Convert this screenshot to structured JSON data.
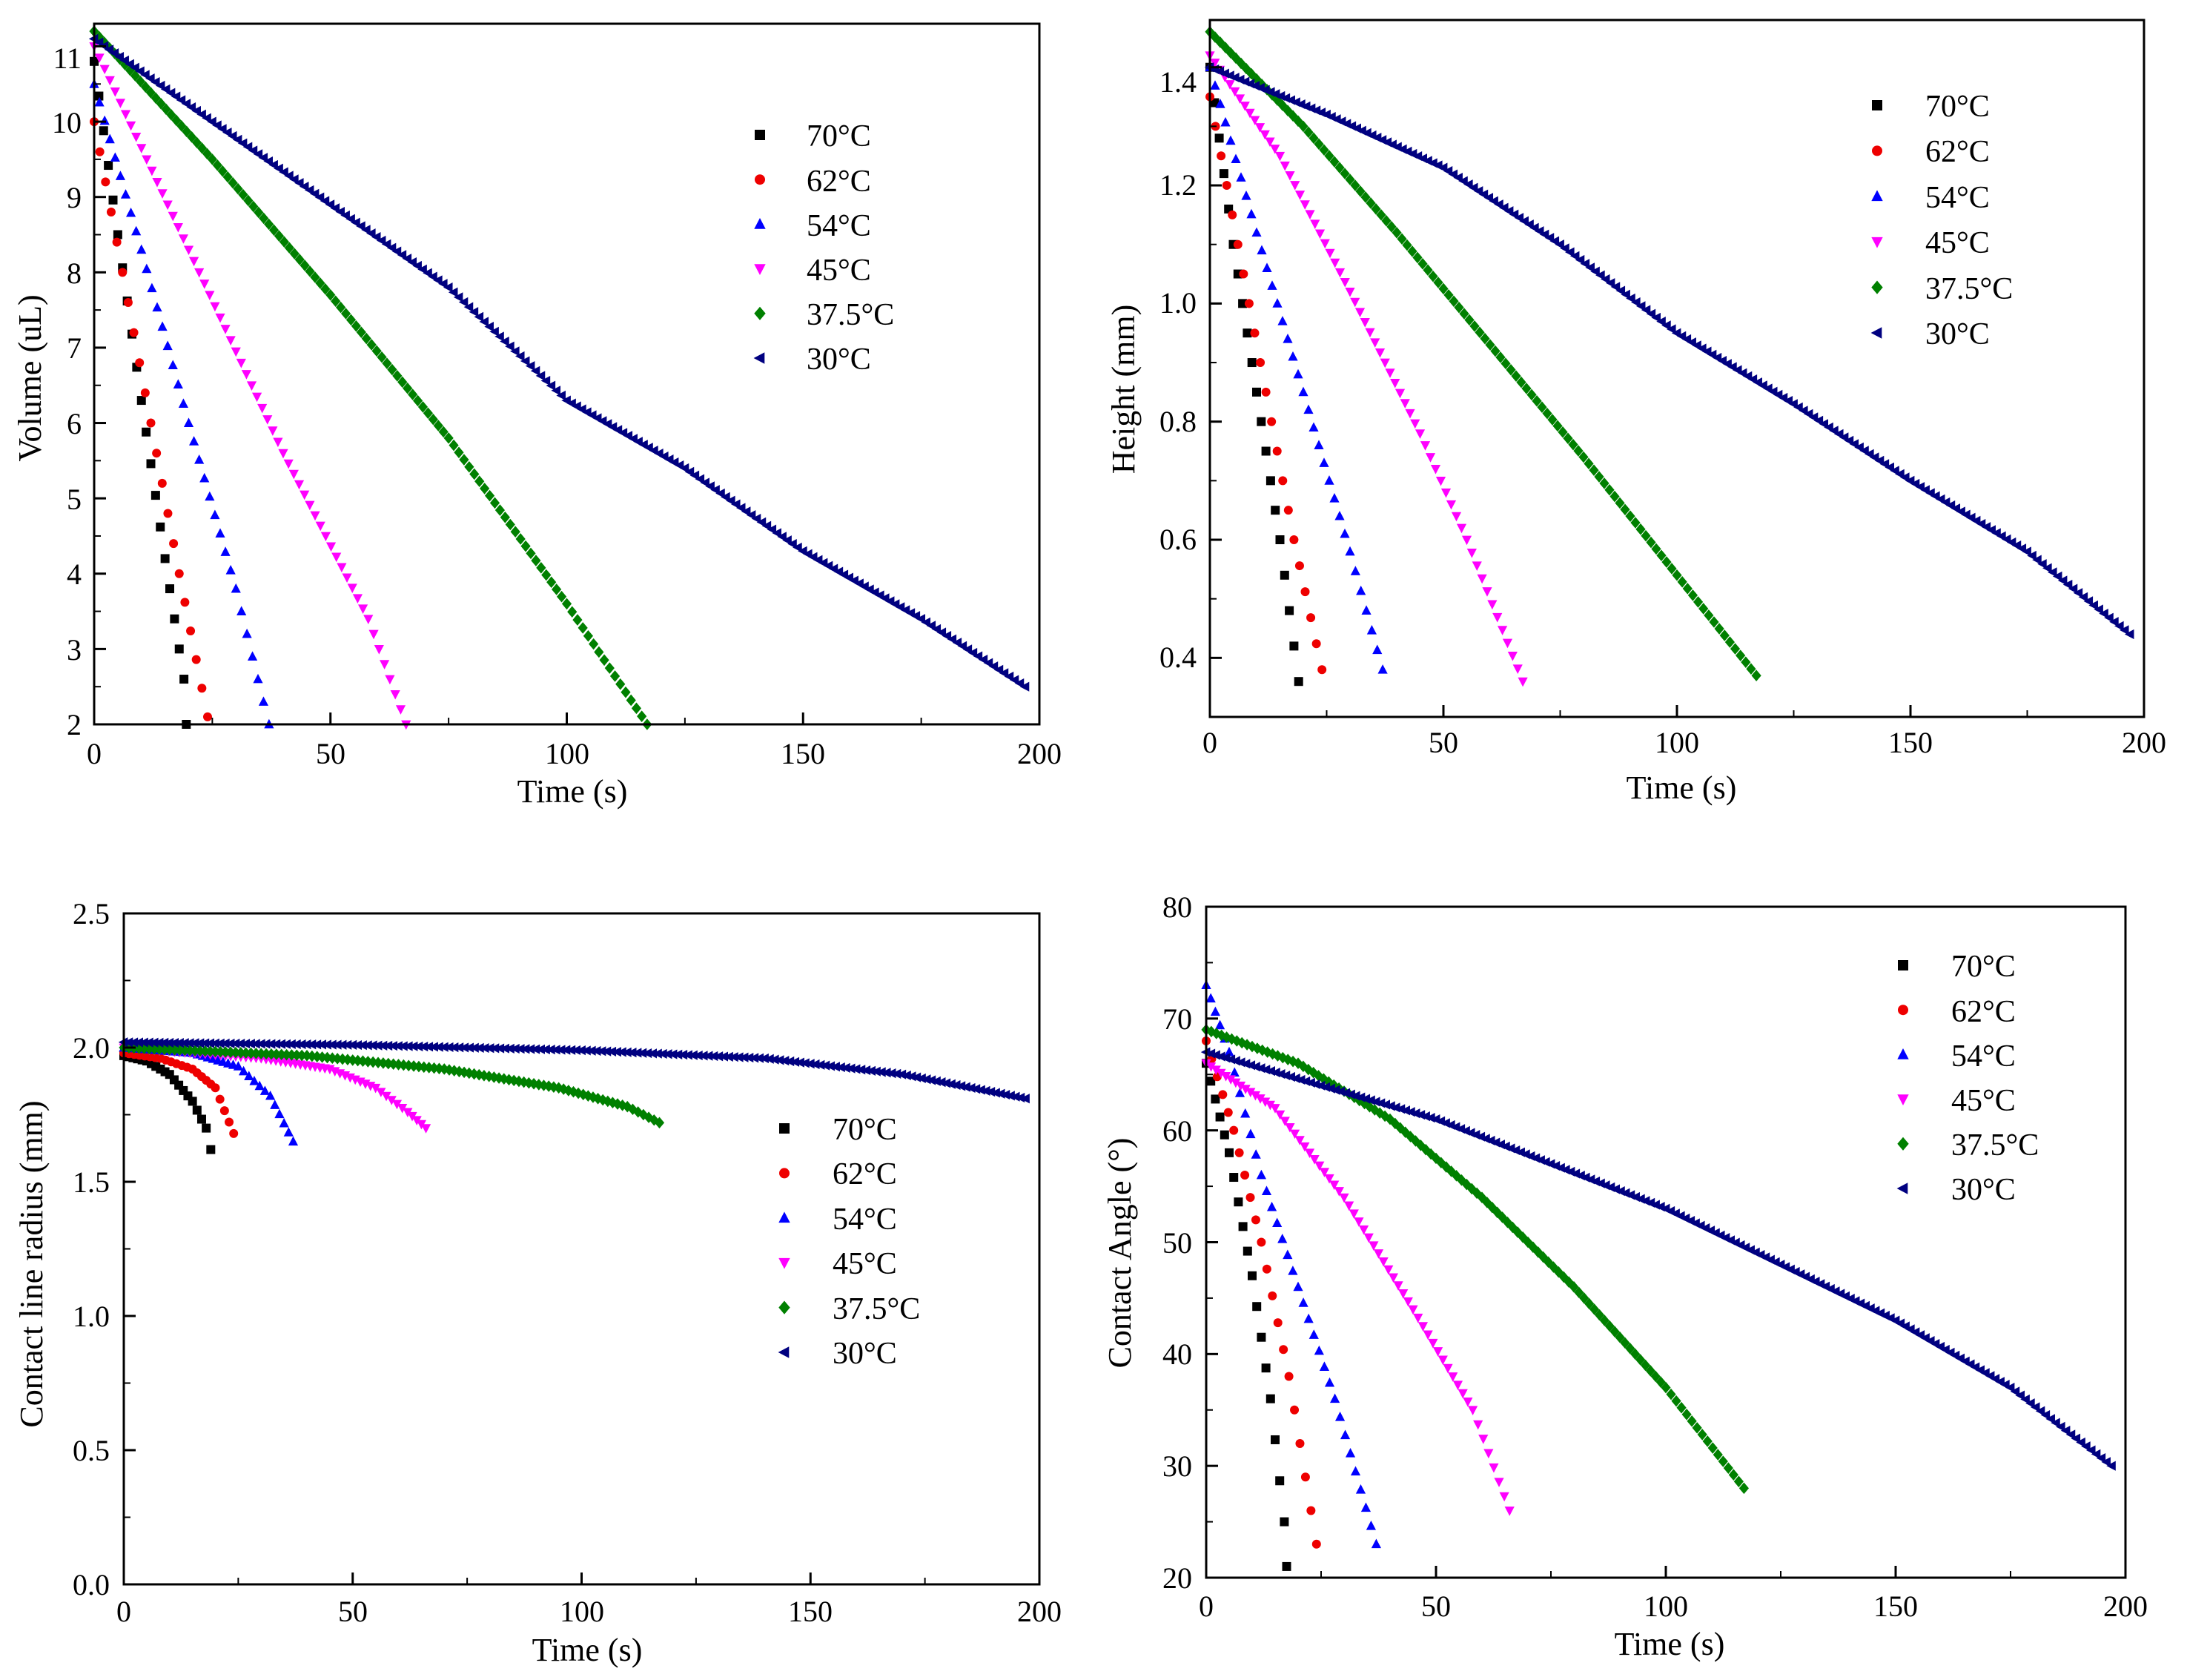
{
  "colors": {
    "70C": "#000000",
    "62C": "#ee0000",
    "54C": "#0000ff",
    "45C": "#ff00ff",
    "37.5C": "#008000",
    "30C": "#000080"
  },
  "legend_labels": [
    "70°C",
    "62°C",
    "54°C",
    "45°C",
    "37.5°C",
    "30°C"
  ],
  "marker_shapes": [
    "square",
    "circle",
    "triangle-up",
    "triangle-down",
    "diamond",
    "triangle-left"
  ],
  "chart_data": [
    {
      "id": "volume",
      "type": "scatter",
      "title": "",
      "xlabel": "Time (s)",
      "ylabel": "Volume (uL)",
      "xlim": [
        0,
        200
      ],
      "ylim": [
        2,
        11.3
      ],
      "xticks": [
        0,
        50,
        100,
        150,
        200
      ],
      "yticks": [
        2,
        3,
        4,
        5,
        6,
        7,
        8,
        9,
        10,
        11
      ],
      "legend_position": "top-right",
      "series": [
        {
          "name": "70°C",
          "key": "70C",
          "shape": "square",
          "points": [
            [
              0,
              10.8
            ],
            [
              5,
              8.5
            ],
            [
              10,
              6.3
            ],
            [
              15,
              4.2
            ],
            [
              19,
              2.6
            ],
            [
              19.5,
              2.0
            ]
          ]
        },
        {
          "name": "62°C",
          "key": "62C",
          "shape": "circle",
          "points": [
            [
              0,
              10.0
            ],
            [
              6,
              8.0
            ],
            [
              12,
              6.0
            ],
            [
              18,
              4.0
            ],
            [
              24,
              2.1
            ]
          ]
        },
        {
          "name": "54°C",
          "key": "54C",
          "shape": "triangle-up",
          "points": [
            [
              0,
              10.5
            ],
            [
              10,
              8.3
            ],
            [
              20,
              6.0
            ],
            [
              30,
              3.8
            ],
            [
              37,
              2.0
            ]
          ]
        },
        {
          "name": "45°C",
          "key": "45C",
          "shape": "triangle-down",
          "points": [
            [
              0,
              11.0
            ],
            [
              20,
              8.3
            ],
            [
              40,
              5.6
            ],
            [
              58,
              3.4
            ],
            [
              66,
              2.0
            ]
          ]
        },
        {
          "name": "37.5°C",
          "key": "37.5C",
          "shape": "diamond",
          "points": [
            [
              0,
              11.2
            ],
            [
              25,
              9.5
            ],
            [
              50,
              7.7
            ],
            [
              75,
              5.8
            ],
            [
              100,
              3.6
            ],
            [
              117,
              2.0
            ]
          ]
        },
        {
          "name": "30°C",
          "key": "30C",
          "shape": "triangle-left",
          "points": [
            [
              0,
              11.1
            ],
            [
              25,
              10.0
            ],
            [
              50,
              8.9
            ],
            [
              75,
              7.8
            ],
            [
              100,
              6.3
            ],
            [
              125,
              5.4
            ],
            [
              150,
              4.3
            ],
            [
              175,
              3.4
            ],
            [
              197,
              2.5
            ]
          ]
        }
      ]
    },
    {
      "id": "height",
      "type": "scatter",
      "title": "",
      "xlabel": "Time (s)",
      "ylabel": "Height (mm)",
      "xlim": [
        0,
        200
      ],
      "ylim": [
        0.3,
        1.48
      ],
      "xticks": [
        0,
        50,
        100,
        150,
        200
      ],
      "yticks": [
        0.4,
        0.6,
        0.8,
        1.0,
        1.2,
        1.4
      ],
      "ytick_labels": [
        "0.4",
        "0.6",
        "0.8",
        "1.0",
        "1.2",
        "1.4"
      ],
      "legend_position": "top-right",
      "series": [
        {
          "name": "70°C",
          "key": "70C",
          "shape": "square",
          "points": [
            [
              0,
              1.4
            ],
            [
              5,
              1.1
            ],
            [
              10,
              0.85
            ],
            [
              15,
              0.6
            ],
            [
              19,
              0.36
            ]
          ]
        },
        {
          "name": "62°C",
          "key": "62C",
          "shape": "circle",
          "points": [
            [
              0,
              1.35
            ],
            [
              6,
              1.1
            ],
            [
              12,
              0.85
            ],
            [
              18,
              0.6
            ],
            [
              24,
              0.38
            ]
          ]
        },
        {
          "name": "54°C",
          "key": "54C",
          "shape": "triangle-up",
          "points": [
            [
              0,
              1.4
            ],
            [
              10,
              1.12
            ],
            [
              20,
              0.85
            ],
            [
              30,
              0.58
            ],
            [
              37,
              0.38
            ]
          ]
        },
        {
          "name": "45°C",
          "key": "45C",
          "shape": "triangle-down",
          "points": [
            [
              0,
              1.42
            ],
            [
              15,
              1.25
            ],
            [
              30,
              1.02
            ],
            [
              45,
              0.78
            ],
            [
              55,
              0.6
            ],
            [
              67,
              0.36
            ]
          ]
        },
        {
          "name": "37.5°C",
          "key": "37.5C",
          "shape": "diamond",
          "points": [
            [
              0,
              1.46
            ],
            [
              20,
              1.3
            ],
            [
              40,
              1.12
            ],
            [
              60,
              0.93
            ],
            [
              80,
              0.74
            ],
            [
              100,
              0.54
            ],
            [
              117,
              0.37
            ]
          ]
        },
        {
          "name": "30°C",
          "key": "30C",
          "shape": "triangle-left",
          "points": [
            [
              0,
              1.4
            ],
            [
              25,
              1.32
            ],
            [
              50,
              1.23
            ],
            [
              75,
              1.1
            ],
            [
              100,
              0.95
            ],
            [
              125,
              0.83
            ],
            [
              150,
              0.7
            ],
            [
              175,
              0.58
            ],
            [
              197,
              0.44
            ]
          ]
        }
      ]
    },
    {
      "id": "radius",
      "type": "scatter",
      "title": "",
      "xlabel": "Time (s)",
      "ylabel": "Contact line radius (mm)",
      "xlim": [
        0,
        200
      ],
      "ylim": [
        0,
        2.5
      ],
      "xticks": [
        0,
        50,
        100,
        150,
        200
      ],
      "yticks": [
        0.0,
        0.5,
        1.0,
        1.5,
        2.0,
        2.5
      ],
      "ytick_labels": [
        "0.0",
        "0.5",
        "1.0",
        "1.5",
        "2.0",
        "2.5"
      ],
      "legend_position": "center-right",
      "series": [
        {
          "name": "70°C",
          "key": "70C",
          "shape": "square",
          "points": [
            [
              0,
              1.97
            ],
            [
              5,
              1.95
            ],
            [
              10,
              1.9
            ],
            [
              15,
              1.8
            ],
            [
              18,
              1.7
            ],
            [
              19,
              1.62
            ]
          ]
        },
        {
          "name": "62°C",
          "key": "62C",
          "shape": "circle",
          "points": [
            [
              0,
              1.98
            ],
            [
              8,
              1.96
            ],
            [
              15,
              1.92
            ],
            [
              20,
              1.85
            ],
            [
              24,
              1.68
            ]
          ]
        },
        {
          "name": "54°C",
          "key": "54C",
          "shape": "triangle-up",
          "points": [
            [
              0,
              2.0
            ],
            [
              15,
              1.98
            ],
            [
              25,
              1.93
            ],
            [
              32,
              1.82
            ],
            [
              37,
              1.65
            ]
          ]
        },
        {
          "name": "45°C",
          "key": "45C",
          "shape": "triangle-down",
          "points": [
            [
              0,
              2.0
            ],
            [
              30,
              1.96
            ],
            [
              45,
              1.92
            ],
            [
              55,
              1.85
            ],
            [
              62,
              1.76
            ],
            [
              66,
              1.7
            ]
          ]
        },
        {
          "name": "37.5°C",
          "key": "37.5C",
          "shape": "diamond",
          "points": [
            [
              0,
              2.0
            ],
            [
              40,
              1.97
            ],
            [
              70,
              1.92
            ],
            [
              95,
              1.85
            ],
            [
              110,
              1.78
            ],
            [
              117,
              1.72
            ]
          ]
        },
        {
          "name": "30°C",
          "key": "30C",
          "shape": "triangle-left",
          "points": [
            [
              0,
              2.02
            ],
            [
              50,
              2.01
            ],
            [
              100,
              1.99
            ],
            [
              140,
              1.96
            ],
            [
              170,
              1.9
            ],
            [
              197,
              1.81
            ]
          ]
        }
      ]
    },
    {
      "id": "angle",
      "type": "scatter",
      "title": "",
      "xlabel": "Time (s)",
      "ylabel": "Contact Angle (°)",
      "xlim": [
        0,
        200
      ],
      "ylim": [
        20,
        80
      ],
      "xticks": [
        0,
        50,
        100,
        150,
        200
      ],
      "yticks": [
        20,
        30,
        40,
        50,
        60,
        70,
        80
      ],
      "legend_position": "top-right",
      "series": [
        {
          "name": "70°C",
          "key": "70C",
          "shape": "square",
          "points": [
            [
              0,
              66
            ],
            [
              5,
              58
            ],
            [
              10,
              47
            ],
            [
              14,
              36
            ],
            [
              17,
              25
            ],
            [
              17.5,
              21
            ]
          ]
        },
        {
          "name": "62°C",
          "key": "62C",
          "shape": "circle",
          "points": [
            [
              0,
              68
            ],
            [
              6,
              60
            ],
            [
              12,
              50
            ],
            [
              18,
              38
            ],
            [
              24,
              23
            ]
          ]
        },
        {
          "name": "54°C",
          "key": "54C",
          "shape": "triangle-up",
          "points": [
            [
              0,
              73
            ],
            [
              5,
              67
            ],
            [
              12,
              56
            ],
            [
              20,
              46
            ],
            [
              28,
              36
            ],
            [
              37,
              23
            ]
          ]
        },
        {
          "name": "45°C",
          "key": "45C",
          "shape": "triangle-down",
          "points": [
            [
              0,
              66
            ],
            [
              15,
              62
            ],
            [
              30,
              54
            ],
            [
              45,
              44
            ],
            [
              58,
              35
            ],
            [
              66,
              26
            ]
          ]
        },
        {
          "name": "37.5°C",
          "key": "37.5C",
          "shape": "diamond",
          "points": [
            [
              0,
              69
            ],
            [
              20,
              66
            ],
            [
              40,
              61
            ],
            [
              60,
              54
            ],
            [
              80,
              46
            ],
            [
              100,
              37
            ],
            [
              117,
              28
            ]
          ]
        },
        {
          "name": "30°C",
          "key": "30C",
          "shape": "triangle-left",
          "points": [
            [
              0,
              67
            ],
            [
              25,
              64
            ],
            [
              50,
              61
            ],
            [
              75,
              57
            ],
            [
              100,
              53
            ],
            [
              125,
              48
            ],
            [
              150,
              43
            ],
            [
              175,
              37
            ],
            [
              197,
              30
            ]
          ]
        }
      ]
    }
  ]
}
